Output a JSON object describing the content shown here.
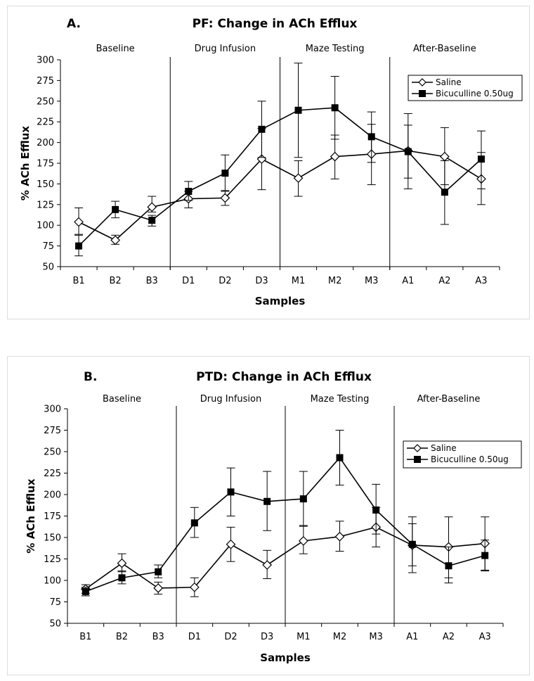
{
  "chart_data": [
    {
      "type": "line",
      "panel_letter": "A.",
      "title": "PF: Change in ACh Efflux",
      "xlabel": "Samples",
      "ylabel": "% ACh Efflux",
      "ylim": [
        50,
        300
      ],
      "yticks": [
        "50",
        "75",
        "100",
        "125",
        "150",
        "175",
        "200",
        "225",
        "250",
        "275",
        "300"
      ],
      "categories": [
        "B1",
        "B2",
        "B3",
        "D1",
        "D2",
        "D3",
        "M1",
        "M2",
        "M3",
        "A1",
        "A2",
        "A3"
      ],
      "phases": [
        "Baseline",
        "Drug Infusion",
        "Maze Testing",
        "After-Baseline"
      ],
      "legend_position": "top-right",
      "series": [
        {
          "name": "Saline",
          "marker": "diamond-open",
          "values": [
            104,
            82,
            122,
            132,
            133,
            180,
            157,
            183,
            186,
            190,
            183,
            156
          ],
          "err_low": [
            89,
            77,
            116,
            121,
            124,
            143,
            135,
            156,
            176,
            144,
            149,
            125
          ],
          "err_high": [
            121,
            88,
            135,
            141,
            141,
            217,
            178,
            209,
            222,
            221,
            218,
            188
          ]
        },
        {
          "name": "Bicuculline 0.50ug",
          "marker": "square-filled",
          "values": [
            75,
            119,
            106,
            141,
            163,
            216,
            239,
            242,
            207,
            189,
            140,
            180
          ],
          "err_low": [
            63,
            109,
            99,
            130,
            142,
            182,
            182,
            204,
            149,
            157,
            101,
            144
          ],
          "err_high": [
            88,
            129,
            112,
            153,
            185,
            250,
            296,
            280,
            237,
            235,
            178,
            214
          ]
        }
      ]
    },
    {
      "type": "line",
      "panel_letter": "B.",
      "title": "PTD: Change in ACh Efflux",
      "xlabel": "Samples",
      "ylabel": "% ACh Efflux",
      "ylim": [
        50,
        300
      ],
      "yticks": [
        "50",
        "75",
        "100",
        "125",
        "150",
        "175",
        "200",
        "225",
        "250",
        "275",
        "300"
      ],
      "categories": [
        "B1",
        "B2",
        "B3",
        "D1",
        "D2",
        "D3",
        "M1",
        "M2",
        "M3",
        "A1",
        "A2",
        "A3"
      ],
      "phases": [
        "Baseline",
        "Drug Infusion",
        "Maze Testing",
        "After-Baseline"
      ],
      "legend_position": "top-right",
      "series": [
        {
          "name": "Saline",
          "marker": "diamond-open",
          "values": [
            90,
            120,
            91,
            92,
            142,
            118,
            146,
            151,
            162,
            141,
            139,
            143
          ],
          "err_low": [
            85,
            110,
            84,
            81,
            122,
            102,
            131,
            134,
            139,
            109,
            103,
            112
          ],
          "err_high": [
            95,
            131,
            98,
            103,
            162,
            135,
            163,
            169,
            185,
            174,
            174,
            174
          ]
        },
        {
          "name": "Bicuculline 0.50ug",
          "marker": "square-filled",
          "values": [
            87,
            103,
            110,
            167,
            203,
            192,
            195,
            243,
            182,
            142,
            117,
            129
          ],
          "err_low": [
            82,
            96,
            103,
            150,
            175,
            158,
            164,
            211,
            154,
            117,
            97,
            111
          ],
          "err_high": [
            92,
            111,
            118,
            185,
            231,
            227,
            227,
            275,
            212,
            166,
            139,
            147
          ]
        }
      ]
    }
  ]
}
